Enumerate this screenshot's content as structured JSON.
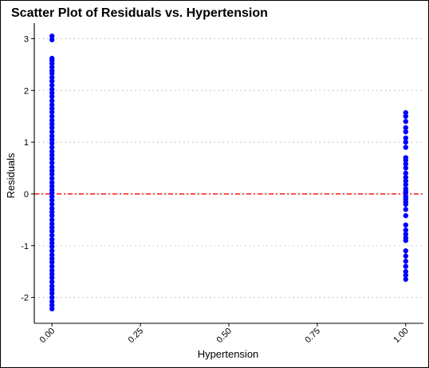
{
  "chart_data": {
    "type": "scatter",
    "title": "Scatter Plot of Residuals vs. Hypertension",
    "xlabel": "Hypertension",
    "ylabel": "Residuals",
    "xlim": [
      -0.05,
      1.05
    ],
    "ylim": [
      -2.5,
      3.3
    ],
    "x_ticks": [
      0.0,
      0.25,
      0.5,
      0.75,
      1.0
    ],
    "x_tick_labels": [
      "0.00",
      "0.25",
      "0.50",
      "0.75",
      "1.00"
    ],
    "y_ticks": [
      -2,
      -1,
      0,
      1,
      2,
      3
    ],
    "y_tick_labels": [
      "-2",
      "-1",
      "0",
      "1",
      "2",
      "3"
    ],
    "grid": "horizontal dotted",
    "reference_line": {
      "y": 0,
      "style": "dashed",
      "color": "#ff0000"
    },
    "point_color": "#0000ff",
    "series": [
      {
        "x": 0,
        "y": [
          3.05,
          2.98,
          2.62,
          2.58,
          2.52,
          2.45,
          2.38,
          2.33,
          2.25,
          2.18,
          2.1,
          2.02,
          1.95,
          1.88,
          1.8,
          1.72,
          1.65,
          1.58,
          1.5,
          1.42,
          1.35,
          1.28,
          1.2,
          1.12,
          1.05,
          0.98,
          0.9,
          0.82,
          0.75,
          0.68,
          0.6,
          0.52,
          0.45,
          0.38,
          0.3,
          0.22,
          0.15,
          0.08,
          0.02,
          -0.05,
          -0.12,
          -0.2,
          -0.28,
          -0.35,
          -0.42,
          -0.5,
          -0.58,
          -0.65,
          -0.72,
          -0.8,
          -0.88,
          -0.95,
          -1.02,
          -1.1,
          -1.18,
          -1.25,
          -1.32,
          -1.4,
          -1.48,
          -1.55,
          -1.62,
          -1.7,
          -1.78,
          -1.85,
          -1.92,
          -2.0,
          -2.08,
          -2.15,
          -2.22
        ]
      },
      {
        "x": 1,
        "y": [
          1.57,
          1.5,
          1.4,
          1.28,
          1.2,
          1.08,
          1.0,
          0.9,
          0.7,
          0.65,
          0.58,
          0.5,
          0.4,
          0.32,
          0.25,
          0.18,
          0.1,
          0.05,
          0.02,
          -0.05,
          -0.1,
          -0.15,
          -0.2,
          -0.3,
          -0.42,
          -0.6,
          -0.7,
          -0.78,
          -0.85,
          -0.9,
          -1.1,
          -1.2,
          -1.3,
          -1.4,
          -1.5,
          -1.57,
          -1.65
        ]
      }
    ]
  }
}
